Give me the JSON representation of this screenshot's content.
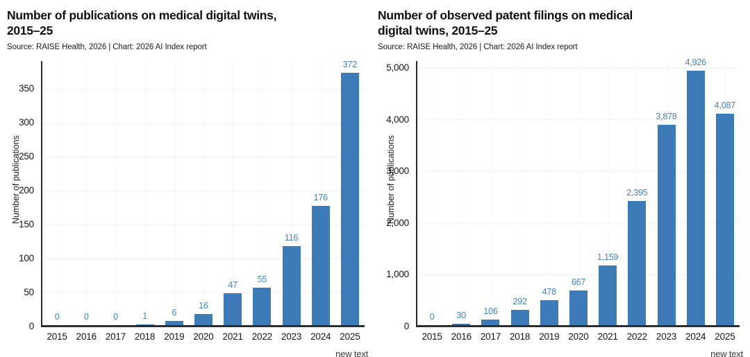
{
  "page": {
    "background": "#ffffff",
    "clipped_footer_note": "new text"
  },
  "colors": {
    "bar": "#3d7ab8",
    "value_label": "#4183c6",
    "axis_line": "#2d2d2d",
    "tick_label": "#141414",
    "grid": "#f1f1f1",
    "title": "#111111",
    "source": "#1c1c1c"
  },
  "chart_data": [
    {
      "type": "bar",
      "title": "Number of publications on medical digital twins, 2015–25",
      "title_lines": [
        "Number of publications on medical digital twins,",
        "2015–25"
      ],
      "source": "Source: RAISE Health, 2026 | Chart: 2026 AI Index report",
      "xlabel": "",
      "ylabel": "Number of publications",
      "categories": [
        "2015",
        "2016",
        "2017",
        "2018",
        "2019",
        "2020",
        "2021",
        "2022",
        "2023",
        "2024",
        "2025"
      ],
      "values": [
        0,
        0,
        0,
        1,
        6,
        16,
        47,
        55,
        116,
        176,
        372
      ],
      "value_labels": [
        "0",
        "0",
        "0",
        "1",
        "6",
        "16",
        "47",
        "55",
        "116",
        "176",
        "372"
      ],
      "ytick_values": [
        0,
        50,
        100,
        150,
        200,
        250,
        300,
        350
      ],
      "ytick_labels": [
        "0",
        "50",
        "100",
        "150",
        "200",
        "250",
        "300",
        "350"
      ],
      "ylim": [
        0,
        391
      ],
      "grid": true,
      "legend": "none"
    },
    {
      "type": "bar",
      "title": "Number of observed patent filings on medical digital twins, 2015–25",
      "title_lines": [
        "Number of observed patent filings on medical",
        "digital twins, 2015–25"
      ],
      "source": "Source: RAISE Health, 2026 | Chart: 2026 AI Index report",
      "xlabel": "",
      "ylabel": "Number of publications",
      "categories": [
        "2015",
        "2016",
        "2017",
        "2018",
        "2019",
        "2020",
        "2021",
        "2022",
        "2023",
        "2024",
        "2025"
      ],
      "values": [
        0,
        30,
        106,
        292,
        478,
        667,
        1159,
        2395,
        3878,
        4926,
        4087
      ],
      "value_labels": [
        "0",
        "30",
        "106",
        "292",
        "478",
        "667",
        "1,159",
        "2,395",
        "3,878",
        "4,926",
        "4,087"
      ],
      "ytick_values": [
        0,
        1000,
        2000,
        3000,
        4000,
        5000
      ],
      "ytick_labels": [
        "0",
        "1,000",
        "2,000",
        "3,000",
        "4,000",
        "5,000"
      ],
      "ylim": [
        0,
        5135
      ],
      "grid": true,
      "legend": "none"
    }
  ]
}
